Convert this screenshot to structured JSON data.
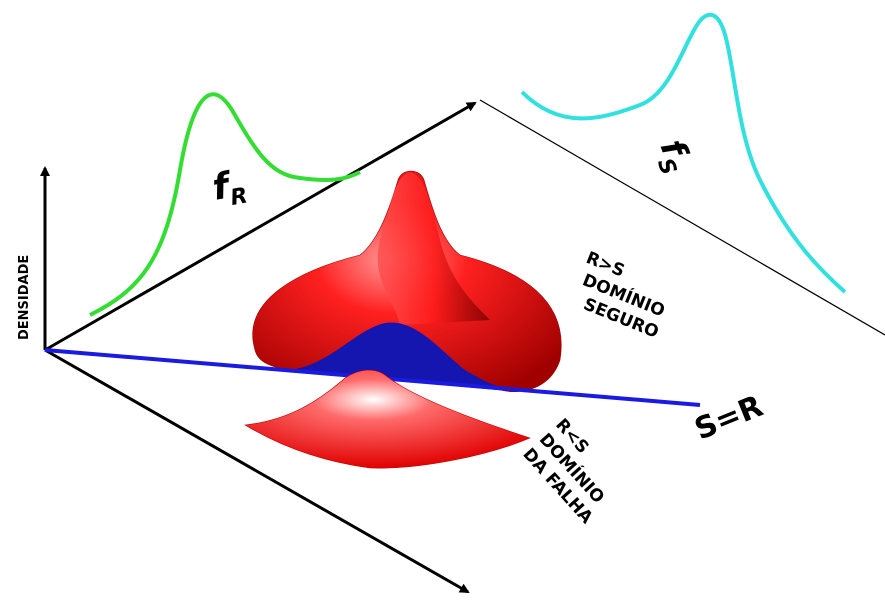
{
  "axis_label": "DENSIDADE",
  "curves": {
    "fr": {
      "symbol": "f",
      "subscript": "R"
    },
    "fs": {
      "symbol": "f",
      "subscript": "S"
    }
  },
  "regions": {
    "safe": [
      "R>S",
      "DOMÍNIO",
      "SEGURO"
    ],
    "failure": [
      "R<S",
      "DOMÍNIO",
      "DA FALHA"
    ]
  },
  "limit_line": "S=R"
}
